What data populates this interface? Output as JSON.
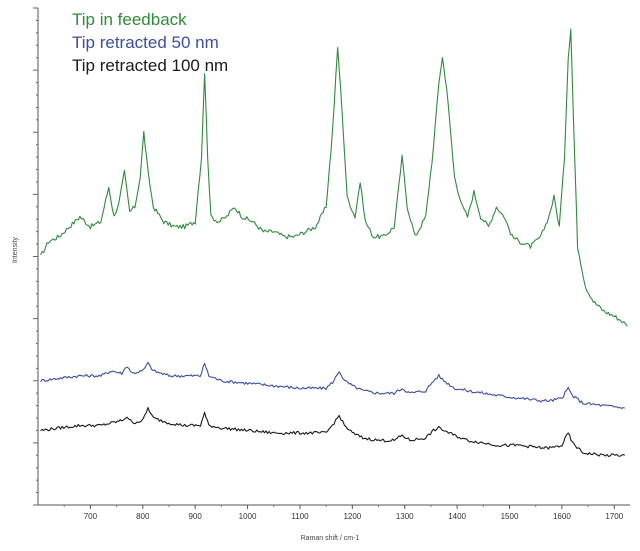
{
  "chart_data": {
    "type": "line",
    "title": "",
    "xlabel": "Raman shift / cm-1",
    "ylabel": "Intensity",
    "xlim": [
      600,
      1730
    ],
    "ylim": [
      0,
      100
    ],
    "xticks": [
      700,
      800,
      900,
      1000,
      1100,
      1200,
      1300,
      1400,
      1500,
      1600,
      1700
    ],
    "grid": false,
    "legend_position": "top-left",
    "series": [
      {
        "name": "Tip in feedback",
        "color": "#2e8b3a",
        "points": [
          [
            605,
            50
          ],
          [
            620,
            53
          ],
          [
            640,
            54
          ],
          [
            660,
            56
          ],
          [
            680,
            58
          ],
          [
            700,
            56
          ],
          [
            720,
            57
          ],
          [
            735,
            64
          ],
          [
            745,
            58
          ],
          [
            755,
            61
          ],
          [
            765,
            67
          ],
          [
            775,
            59
          ],
          [
            785,
            60
          ],
          [
            795,
            66
          ],
          [
            802,
            75
          ],
          [
            810,
            67
          ],
          [
            820,
            60
          ],
          [
            840,
            57
          ],
          [
            860,
            56
          ],
          [
            880,
            56
          ],
          [
            900,
            57
          ],
          [
            912,
            70
          ],
          [
            918,
            87
          ],
          [
            924,
            70
          ],
          [
            930,
            58
          ],
          [
            945,
            57
          ],
          [
            960,
            58
          ],
          [
            975,
            60
          ],
          [
            990,
            58
          ],
          [
            1010,
            57
          ],
          [
            1030,
            55
          ],
          [
            1050,
            55
          ],
          [
            1070,
            54
          ],
          [
            1090,
            54
          ],
          [
            1110,
            55
          ],
          [
            1130,
            56
          ],
          [
            1150,
            60
          ],
          [
            1162,
            75
          ],
          [
            1172,
            92
          ],
          [
            1180,
            80
          ],
          [
            1190,
            62
          ],
          [
            1205,
            58
          ],
          [
            1215,
            65
          ],
          [
            1225,
            57
          ],
          [
            1240,
            54
          ],
          [
            1260,
            54
          ],
          [
            1280,
            56
          ],
          [
            1295,
            70
          ],
          [
            1305,
            60
          ],
          [
            1320,
            54
          ],
          [
            1340,
            58
          ],
          [
            1355,
            72
          ],
          [
            1365,
            85
          ],
          [
            1372,
            90
          ],
          [
            1380,
            84
          ],
          [
            1395,
            66
          ],
          [
            1410,
            60
          ],
          [
            1420,
            58
          ],
          [
            1432,
            63
          ],
          [
            1445,
            58
          ],
          [
            1460,
            56
          ],
          [
            1475,
            60
          ],
          [
            1490,
            58
          ],
          [
            1505,
            54
          ],
          [
            1520,
            53
          ],
          [
            1540,
            52
          ],
          [
            1560,
            54
          ],
          [
            1575,
            58
          ],
          [
            1585,
            62
          ],
          [
            1595,
            56
          ],
          [
            1605,
            70
          ],
          [
            1612,
            90
          ],
          [
            1617,
            96
          ],
          [
            1622,
            78
          ],
          [
            1630,
            52
          ],
          [
            1645,
            44
          ],
          [
            1660,
            41
          ],
          [
            1680,
            39
          ],
          [
            1700,
            38
          ],
          [
            1715,
            37
          ],
          [
            1725,
            36
          ]
        ]
      },
      {
        "name": "Tip retracted 50 nm",
        "color": "#3a4ea8",
        "points": [
          [
            605,
            25
          ],
          [
            640,
            25.5
          ],
          [
            680,
            26
          ],
          [
            720,
            26
          ],
          [
            740,
            27
          ],
          [
            760,
            26.5
          ],
          [
            770,
            28
          ],
          [
            780,
            26.5
          ],
          [
            800,
            27
          ],
          [
            810,
            28.5
          ],
          [
            820,
            27
          ],
          [
            850,
            26
          ],
          [
            880,
            26
          ],
          [
            910,
            26
          ],
          [
            918,
            28.5
          ],
          [
            926,
            26
          ],
          [
            950,
            25
          ],
          [
            1000,
            24.5
          ],
          [
            1050,
            24
          ],
          [
            1100,
            23.5
          ],
          [
            1150,
            23.5
          ],
          [
            1165,
            25
          ],
          [
            1175,
            27
          ],
          [
            1185,
            25
          ],
          [
            1200,
            24
          ],
          [
            1220,
            23
          ],
          [
            1250,
            22.5
          ],
          [
            1280,
            22.5
          ],
          [
            1295,
            23.5
          ],
          [
            1310,
            22.5
          ],
          [
            1340,
            23
          ],
          [
            1355,
            25
          ],
          [
            1365,
            26
          ],
          [
            1375,
            25
          ],
          [
            1395,
            23.5
          ],
          [
            1420,
            23
          ],
          [
            1450,
            22.5
          ],
          [
            1480,
            22
          ],
          [
            1520,
            21.5
          ],
          [
            1560,
            21
          ],
          [
            1580,
            21
          ],
          [
            1600,
            21.5
          ],
          [
            1612,
            23.5
          ],
          [
            1620,
            22
          ],
          [
            1640,
            20.5
          ],
          [
            1680,
            20
          ],
          [
            1720,
            19.5
          ]
        ]
      },
      {
        "name": "Tip retracted 100 nm",
        "color": "#1a1a1a",
        "points": [
          [
            605,
            15
          ],
          [
            640,
            15.5
          ],
          [
            680,
            16
          ],
          [
            720,
            16
          ],
          [
            740,
            16.5
          ],
          [
            760,
            17
          ],
          [
            770,
            17.8
          ],
          [
            780,
            16.5
          ],
          [
            800,
            17
          ],
          [
            810,
            19.5
          ],
          [
            820,
            17.5
          ],
          [
            850,
            16.5
          ],
          [
            880,
            16
          ],
          [
            910,
            16
          ],
          [
            918,
            18.5
          ],
          [
            926,
            16
          ],
          [
            950,
            15.5
          ],
          [
            1000,
            15
          ],
          [
            1050,
            14.5
          ],
          [
            1100,
            14.5
          ],
          [
            1150,
            14.5
          ],
          [
            1165,
            16.5
          ],
          [
            1175,
            18
          ],
          [
            1185,
            16
          ],
          [
            1200,
            14.5
          ],
          [
            1220,
            13.5
          ],
          [
            1250,
            13
          ],
          [
            1280,
            13
          ],
          [
            1295,
            14
          ],
          [
            1310,
            13
          ],
          [
            1340,
            13.5
          ],
          [
            1355,
            15
          ],
          [
            1365,
            15.5
          ],
          [
            1375,
            15
          ],
          [
            1395,
            14
          ],
          [
            1420,
            13
          ],
          [
            1450,
            12.5
          ],
          [
            1480,
            12
          ],
          [
            1520,
            12
          ],
          [
            1560,
            11.5
          ],
          [
            1580,
            11.5
          ],
          [
            1600,
            12
          ],
          [
            1612,
            14.5
          ],
          [
            1620,
            12.5
          ],
          [
            1640,
            10.5
          ],
          [
            1680,
            10
          ],
          [
            1720,
            10
          ]
        ]
      }
    ]
  }
}
